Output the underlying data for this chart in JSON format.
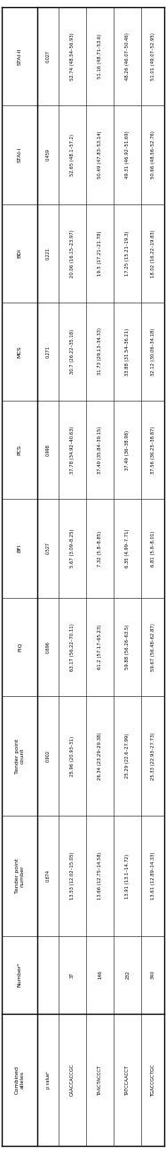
{
  "col_headers": [
    "Combined\nalleles",
    "Numberᵃ",
    "Tender point\nnumber",
    "Tender point\ncount",
    "FIQ",
    "BFI",
    "PCS",
    "MCS",
    "BDI",
    "STAI-I",
    "STAI-II"
  ],
  "rows": [
    [
      "TGACCGCTGC",
      "340",
      "13.61 (12.89–14.33)",
      "25.33 (22.93–27.73)",
      "59.67 (56.48–62.87)",
      "6.81 (5.6–8.01)",
      "37.56 (36.25–38.87)",
      "32.12 (30.06–34.18)",
      "18.02 (16.22–19.83)",
      "50.66 (48.56–52.76)",
      "51.01 (49.07–52.95)"
    ],
    [
      "TATCCAACCT",
      "232",
      "13.91 (13.1–14.72)",
      "25.29 (22.6–27.99)",
      "59.88 (56.26–63.5)",
      "6.35 (4.99–7.71)",
      "37.49 (36–38.98)",
      "33.88 (31.54–36.21)",
      "17.25 (15.21–19.3)",
      "49.31 (46.92–51.69)",
      "48.26 (46.07–50.46)"
    ],
    [
      "TAACTACCCT",
      "146",
      "13.66 (12.75–14.58)",
      "26.34 (23.29–29.38)",
      "61.2 (57.17–65.23)",
      "7.32 (5.8–8.85)",
      "37.49 (35.84–39.15)",
      "31.73 (29.13–34.33)",
      "19.5 (17.21–21.78)",
      "50.49 (47.83–53.14)",
      "51.16 (48.71–53.6)"
    ],
    [
      "CAACCACCGC",
      "37",
      "13.53 (12.02–15.05)",
      "25.96 (20.93–31)",
      "63.17 (56.22–70.11)",
      "5.67 (3.09–8.25)",
      "37.78 (34.92–40.63)",
      "30.7 (26.22–35.18)",
      "20.06 (16.15–23.97)",
      "52.65 (48.1–57.2)",
      "52.74 (48.54–56.93)"
    ],
    [
      "p valueᵇ",
      "",
      "0.874",
      "0.902",
      "0.696",
      "0.527",
      "0.998",
      "0.271",
      "0.221",
      "0.459",
      "0.027"
    ]
  ]
}
